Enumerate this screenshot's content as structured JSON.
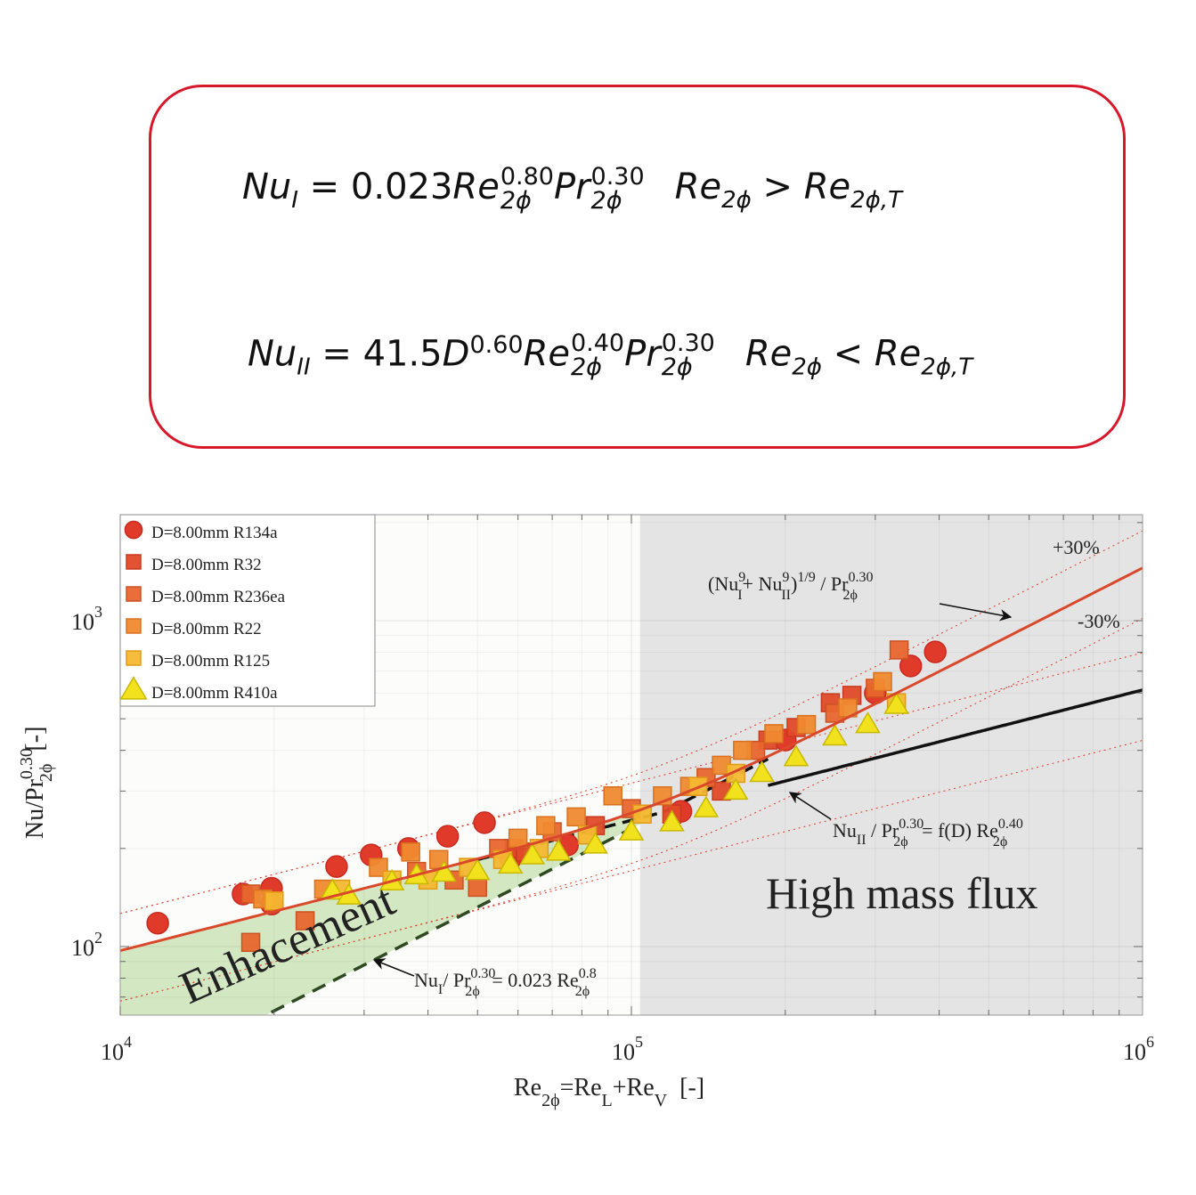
{
  "equations": [
    {
      "lhs": "Nu",
      "lhs_sub": "I",
      "eq": " = 0.023",
      "t1": "Re",
      "t1_sup": "0.80",
      "t1_sub": "2ϕ",
      "t2": "Pr",
      "t2_sup": "0.30",
      "t2_sub": "2ϕ",
      "cond_l": "Re",
      "cond_l_sub": "2ϕ",
      "op": " > ",
      "cond_r": "Re",
      "cond_r_sub": "2ϕ,T"
    },
    {
      "lhs": "Nu",
      "lhs_sub": "II",
      "eq": " = 41.5",
      "t0": "D",
      "t0_sup": "0.60",
      "t1": "Re",
      "t1_sup": "0.40",
      "t1_sub": "2ϕ",
      "t2": "Pr",
      "t2_sup": "0.30",
      "t2_sub": "2ϕ",
      "cond_l": "Re",
      "cond_l_sub": "2ϕ",
      "op": " < ",
      "cond_r": "Re",
      "cond_r_sub": "2ϕ,T"
    }
  ],
  "colors": {
    "box_border": "#d7182a",
    "model_combined": "#d9482a",
    "shade_high": "#e4e4e4",
    "enhancement_fill": "#d3e8c2"
  },
  "chart_data": {
    "type": "scatter",
    "xscale": "log",
    "yscale": "log",
    "xlim": [
      10000,
      1000000
    ],
    "ylim": [
      62,
      2100
    ],
    "xlabel": {
      "main": "Re",
      "sub1": "2ϕ",
      "mid": "=Re",
      "sub2": "L",
      "mid2": "+Re",
      "sub3": "V",
      "unit": "  [-]"
    },
    "ylabel": {
      "main": "Nu/Pr",
      "sup": "0.30",
      "sub": "2ϕ",
      "unit": "  [-]"
    },
    "xticks": [
      {
        "base": "10",
        "exp": "4",
        "value": 10000
      },
      {
        "base": "10",
        "exp": "5",
        "value": 100000
      },
      {
        "base": "10",
        "exp": "6",
        "value": 1000000
      }
    ],
    "yticks": [
      {
        "base": "10",
        "exp": "2",
        "value": 100
      },
      {
        "base": "10",
        "exp": "3",
        "value": 1000
      }
    ],
    "grid": true,
    "legend_position": "top-left",
    "high_mass_flux_region": {
      "from": 104000,
      "to": 1000000
    },
    "models": {
      "NuI": {
        "coef": 0.023,
        "exp": 0.8
      },
      "NuII": {
        "coef": 2.44,
        "exp": 0.4
      },
      "combined_power": 9,
      "band": 0.3
    },
    "series": [
      {
        "name": "D=8.00mm R134a",
        "marker": "circle",
        "color": "#e03a2a",
        "edge": "#c92a1e",
        "points": [
          [
            11840,
            118
          ],
          [
            17390,
            145
          ],
          [
            19770,
            151
          ],
          [
            19770,
            135
          ],
          [
            26500,
            176
          ],
          [
            30970,
            191
          ],
          [
            36640,
            200
          ],
          [
            43700,
            218
          ],
          [
            51600,
            240
          ],
          [
            58000,
            186
          ],
          [
            75000,
            205
          ],
          [
            125000,
            260
          ],
          [
            200000,
            430
          ],
          [
            300000,
            600
          ],
          [
            352000,
            726
          ],
          [
            393000,
            802
          ]
        ]
      },
      {
        "name": "D=8.00mm R32",
        "marker": "square",
        "color": "#e04a28",
        "edge": "#c83a1e",
        "points": [
          [
            59000,
            200
          ],
          [
            62000,
            195
          ],
          [
            85000,
            235
          ],
          [
            120000,
            255
          ],
          [
            150000,
            300
          ],
          [
            185000,
            430
          ],
          [
            210000,
            470
          ],
          [
            245000,
            560
          ],
          [
            270000,
            590
          ]
        ]
      },
      {
        "name": "D=8.00mm R236ea",
        "marker": "square",
        "color": "#e8662e",
        "edge": "#cc5222",
        "points": [
          [
            18000,
            145
          ],
          [
            18000,
            103
          ],
          [
            23000,
            120
          ],
          [
            38000,
            170
          ],
          [
            45000,
            160
          ],
          [
            50000,
            152
          ],
          [
            55000,
            200
          ],
          [
            70000,
            225
          ],
          [
            100000,
            265
          ],
          [
            140000,
            330
          ],
          [
            175000,
            400
          ],
          [
            250000,
            520
          ],
          [
            300000,
            620
          ],
          [
            334000,
            813
          ]
        ]
      },
      {
        "name": "D=8.00mm R22",
        "marker": "square",
        "color": "#f08a30",
        "edge": "#d87220",
        "points": [
          [
            19000,
            140
          ],
          [
            25000,
            150
          ],
          [
            32000,
            175
          ],
          [
            37000,
            195
          ],
          [
            42000,
            185
          ],
          [
            60000,
            215
          ],
          [
            68000,
            235
          ],
          [
            78000,
            250
          ],
          [
            92000,
            290
          ],
          [
            115000,
            290
          ],
          [
            130000,
            310
          ],
          [
            150000,
            360
          ],
          [
            165000,
            400
          ],
          [
            190000,
            450
          ],
          [
            220000,
            480
          ],
          [
            265000,
            540
          ],
          [
            310000,
            650
          ]
        ]
      },
      {
        "name": "D=8.00mm R125",
        "marker": "square",
        "color": "#f6b830",
        "edge": "#e09a1a",
        "points": [
          [
            20000,
            138
          ],
          [
            27000,
            150
          ],
          [
            34000,
            160
          ],
          [
            40000,
            160
          ],
          [
            48000,
            175
          ],
          [
            56000,
            185
          ],
          [
            66000,
            200
          ],
          [
            82000,
            220
          ],
          [
            105000,
            255
          ],
          [
            135000,
            310
          ],
          [
            160000,
            340
          ],
          [
            330000,
            560
          ]
        ]
      },
      {
        "name": "D=8.00mm R410a",
        "marker": "triangle",
        "color": "#f2e21e",
        "edge": "#c8b800",
        "points": [
          [
            26000,
            148
          ],
          [
            28000,
            143
          ],
          [
            34000,
            158
          ],
          [
            38000,
            165
          ],
          [
            43000,
            168
          ],
          [
            50000,
            170
          ],
          [
            58000,
            178
          ],
          [
            64000,
            190
          ],
          [
            72000,
            195
          ],
          [
            85000,
            205
          ],
          [
            100000,
            225
          ],
          [
            120000,
            240
          ],
          [
            140000,
            265
          ],
          [
            160000,
            300
          ],
          [
            180000,
            340
          ],
          [
            210000,
            380
          ],
          [
            250000,
            440
          ],
          [
            290000,
            480
          ],
          [
            330000,
            550
          ]
        ]
      }
    ],
    "annotations": {
      "plus30": "+30%",
      "minus30": "-30%",
      "combined": {
        "open": "(Nu",
        "sup1": "9",
        "sub1": "I",
        "plus": "+ Nu",
        "sup2": "9",
        "sub2": "II",
        "close": ")",
        "sup3": "1/9",
        "slash": "  / Pr",
        "sup4": "0.30",
        "sub4": "2ϕ"
      },
      "nu2": {
        "a": "Nu",
        "sub1": "II",
        "b": " / Pr",
        "sup1": "0.30",
        "sub2": "2ϕ",
        "c": " = f(D)  Re",
        "sup2": "0.40",
        "sub3": "2ϕ"
      },
      "nu1": {
        "a": "Nu",
        "sub1": "I",
        "b": "/ Pr",
        "sup1": "0.30",
        "sub2": "2ϕ",
        "c": " = 0.023 Re",
        "sup2": "0.8",
        "sub3": "2ϕ"
      },
      "high_mass_flux": "High mass flux",
      "enhancement": "Enhacement"
    }
  }
}
